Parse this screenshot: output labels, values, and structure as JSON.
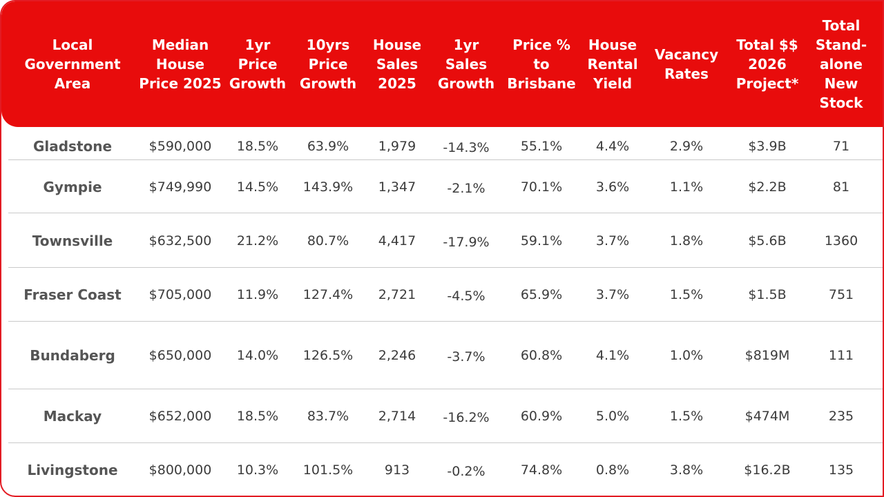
{
  "chart_data": {
    "type": "table",
    "columns": [
      "Local\nGovernment\nArea",
      "Median\nHouse\nPrice 2025",
      "1yr\nPrice\nGrowth",
      "10yrs\nPrice\nGrowth",
      "House\nSales\n2025",
      "1yr\nSales\nGrowth",
      "Price %\nto\nBrisbane",
      "House\nRental\nYield",
      "Vacancy\nRates",
      "Total $$\n2026\nProject*",
      "Total\nStand-\nalone\nNew\nStock"
    ],
    "rows": [
      [
        "Gladstone",
        "$590,000",
        "18.5%",
        "63.9%",
        "1,979",
        "-14.3%",
        "55.1%",
        "4.4%",
        "2.9%",
        "$3.9B",
        "71"
      ],
      [
        "Gympie",
        "$749,990",
        "14.5%",
        "143.9%",
        "1,347",
        "-2.1%",
        "70.1%",
        "3.6%",
        "1.1%",
        "$2.2B",
        "81"
      ],
      [
        "Townsville",
        "$632,500",
        "21.2%",
        "80.7%",
        "4,417",
        "-17.9%",
        "59.1%",
        "3.7%",
        "1.8%",
        "$5.6B",
        "1360"
      ],
      [
        "Fraser Coast",
        "$705,000",
        "11.9%",
        "127.4%",
        "2,721",
        "-4.5%",
        "65.9%",
        "3.7%",
        "1.5%",
        "$1.5B",
        "751"
      ],
      [
        "Bundaberg",
        "$650,000",
        "14.0%",
        "126.5%",
        "2,246",
        "-3.7%",
        "60.8%",
        "4.1%",
        "1.0%",
        "$819M",
        "111"
      ],
      [
        "Mackay",
        "$652,000",
        "18.5%",
        "83.7%",
        "2,714",
        "-16.2%",
        "60.9%",
        "5.0%",
        "1.5%",
        "$474M",
        "235"
      ],
      [
        "Livingstone",
        "$800,000",
        "10.3%",
        "101.5%",
        "913",
        "-0.2%",
        "74.8%",
        "0.8%",
        "3.8%",
        "$16.2B",
        "135"
      ]
    ]
  },
  "colors": {
    "header_bg": "#e80c0c",
    "header_text": "#ffffff",
    "border": "#e31b23",
    "row_line": "#c9c9c9",
    "body_text": "#3c3c3c"
  }
}
